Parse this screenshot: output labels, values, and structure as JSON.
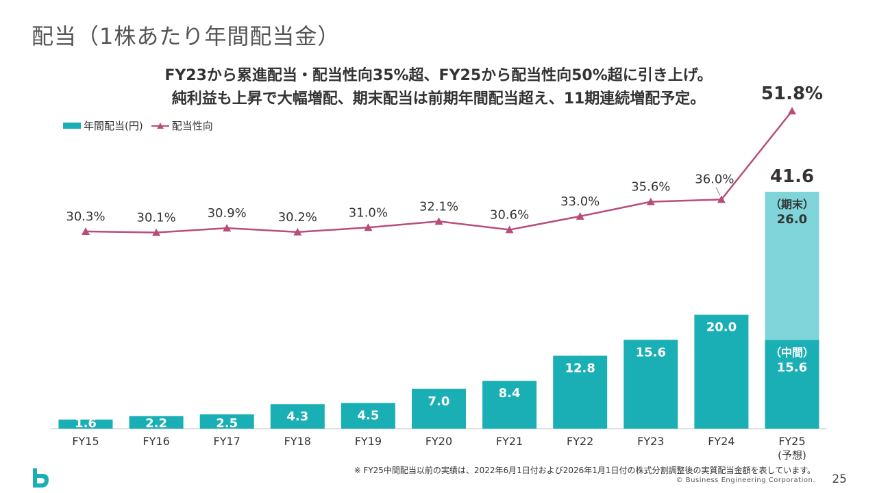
{
  "page": {
    "title": "配当（1株あたり年間配当金）",
    "subtitle_line1": "FY23から累進配当・配当性向35%超、FY25から配当性向50%超に引き上げ。",
    "subtitle_line2": "純利益も上昇で大幅増配、期末配当は前期年間配当超え、11期連続増配予定。",
    "footnote": "※ FY25中間配当以前の実績は、2022年6月1日付および2026年1月1日付の株式分割調整後の実質配当金額を表しています。",
    "copyright": "© Business Engineering Corporation.",
    "page_number": "25"
  },
  "legend": {
    "bar_label": "年間配当(円)",
    "line_label": "配当性向"
  },
  "colors": {
    "bar": "#1AAFB5",
    "bar_final": "#7FD5D9",
    "line": "#B84C7A",
    "logo": "#1AAFB5"
  },
  "chart_data": {
    "type": "bar",
    "categories": [
      "FY15",
      "FY16",
      "FY17",
      "FY18",
      "FY19",
      "FY20",
      "FY21",
      "FY22",
      "FY23",
      "FY24",
      "FY25"
    ],
    "category_sublabels": [
      "",
      "",
      "",
      "",
      "",
      "",
      "",
      "",
      "",
      "",
      "(予想)"
    ],
    "series": [
      {
        "name": "年間配当(円)",
        "type": "bar",
        "values": [
          1.6,
          2.2,
          2.5,
          4.3,
          4.5,
          7.0,
          8.4,
          12.8,
          15.6,
          20.0,
          41.6
        ],
        "labels": [
          "1.6",
          "2.2",
          "2.5",
          "4.3",
          "4.5",
          "7.0",
          "8.4",
          "12.8",
          "15.6",
          "20.0",
          "41.6"
        ]
      },
      {
        "name": "配当性向",
        "type": "line",
        "values": [
          30.3,
          30.1,
          30.9,
          30.2,
          31.0,
          32.1,
          30.6,
          33.0,
          35.6,
          36.0,
          51.8
        ],
        "labels": [
          "30.3%",
          "30.1%",
          "30.9%",
          "30.2%",
          "31.0%",
          "32.1%",
          "30.6%",
          "33.0%",
          "35.6%",
          "36.0%",
          "51.8%"
        ]
      }
    ],
    "fy25_breakdown": {
      "interim_label": "（中間）",
      "interim_value": "15.6",
      "final_label": "（期末）",
      "final_value": "26.0",
      "interim": 15.6,
      "final": 26.0
    },
    "bar_ylim": [
      0,
      43
    ],
    "line_ylim": [
      0,
      55
    ]
  }
}
